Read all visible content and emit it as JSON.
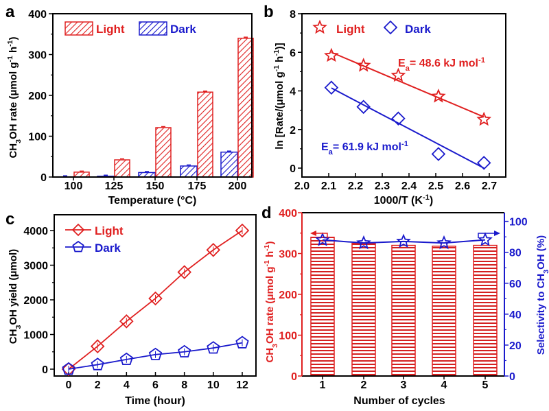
{
  "colors": {
    "light": "#e02020",
    "dark": "#1a1acc",
    "axis": "#000000",
    "light_fill": "#ffffff"
  },
  "chart_data": [
    {
      "panel_label": "a",
      "type": "bar",
      "categories": [
        "100",
        "125",
        "150",
        "175",
        "200"
      ],
      "xlabel": [
        "Temperature (°C)"
      ],
      "ylabel": [
        "CH",
        {
          "sub": "3"
        },
        "OH rate (μmol g",
        {
          "sup": "-1"
        },
        " h",
        {
          "sup": "-1"
        },
        ")"
      ],
      "ylim": [
        0,
        400
      ],
      "yticks": [
        0,
        100,
        200,
        300,
        400
      ],
      "legend_position": "top-left",
      "bar_pattern": "diagonal-hatch",
      "series": [
        {
          "name": "Dark",
          "color": "#1a1acc",
          "values": [
            0.5,
            2,
            11,
            27,
            61
          ]
        },
        {
          "name": "Light",
          "color": "#e02020",
          "values": [
            12,
            42,
            121,
            208,
            340
          ]
        }
      ]
    },
    {
      "panel_label": "b",
      "type": "scatter",
      "xlabel": [
        "1000/T (K",
        {
          "sup": "-1"
        },
        ")"
      ],
      "ylabel": [
        "ln [Rate/(μmol g",
        {
          "sup": "-1"
        },
        " h",
        {
          "sup": "-1"
        },
        ")]"
      ],
      "xlim": [
        2.0,
        2.76
      ],
      "ylim": [
        -0.45,
        8
      ],
      "xticks": [
        "2.0",
        "2.1",
        "2.2",
        "2.3",
        "2.4",
        "2.5",
        "2.6",
        "2.7"
      ],
      "yticks": [
        0,
        2,
        4,
        6,
        8
      ],
      "legend_position": "top-left",
      "series": [
        {
          "name": "Light",
          "marker": "star",
          "color": "#e02020",
          "x": [
            2.11,
            2.23,
            2.36,
            2.51,
            2.68
          ],
          "y": [
            5.83,
            5.32,
            4.8,
            3.72,
            2.52
          ],
          "fit": {
            "x": [
              2.11,
              2.68
            ],
            "y": [
              6.0,
              2.65
            ]
          }
        },
        {
          "name": "Dark",
          "marker": "diamond",
          "color": "#1a1acc",
          "x": [
            2.11,
            2.23,
            2.36,
            2.51,
            2.68
          ],
          "y": [
            4.17,
            3.17,
            2.57,
            0.73,
            0.27
          ],
          "fit": {
            "x": [
              2.11,
              2.68
            ],
            "y": [
              4.15,
              0.0
            ]
          }
        }
      ],
      "annotations": [
        {
          "color": "#e02020",
          "text": [
            "E",
            {
              "sub": "a"
            },
            "= 48.6 kJ mol",
            {
              "sup": "-1"
            }
          ]
        },
        {
          "color": "#1a1acc",
          "text": [
            "E",
            {
              "sub": "a"
            },
            "= 61.9 kJ mol",
            {
              "sup": "-1"
            }
          ]
        }
      ]
    },
    {
      "panel_label": "c",
      "type": "line",
      "xlabel": [
        "Time (hour)"
      ],
      "ylabel": [
        "CH",
        {
          "sub": "3"
        },
        "OH yield  (μmol)"
      ],
      "xlim": [
        -0.5,
        12.8
      ],
      "ylim": [
        -150,
        4500
      ],
      "xticks": [
        0,
        2,
        4,
        6,
        8,
        10,
        12
      ],
      "yticks": [
        0,
        1000,
        2000,
        3000,
        4000
      ],
      "legend_position": "top-left",
      "x": [
        0,
        2,
        4,
        6,
        8,
        10,
        12
      ],
      "series": [
        {
          "name": "Light",
          "marker": "diamond",
          "color": "#e02020",
          "values": [
            0,
            660,
            1380,
            2040,
            2800,
            3440,
            4000
          ]
        },
        {
          "name": "Dark",
          "marker": "pentagon",
          "color": "#1a1acc",
          "values": [
            0,
            130,
            280,
            420,
            500,
            610,
            760
          ]
        }
      ]
    },
    {
      "panel_label": "d",
      "type": "bar",
      "categories": [
        "1",
        "2",
        "3",
        "4",
        "5"
      ],
      "xlabel": [
        "Number of cycles"
      ],
      "ylabel": [
        "CH",
        {
          "sub": "3"
        },
        "OH rate (μmol g",
        {
          "sup": "-1"
        },
        " h",
        {
          "sup": "-1"
        },
        ")"
      ],
      "ylabel_right": [
        "Selectivity to CH",
        {
          "sub": "3"
        },
        "OH (%)"
      ],
      "ylim": [
        0,
        400
      ],
      "ylim_right": [
        0,
        105.6
      ],
      "yticks": [
        0,
        100,
        200,
        300,
        400
      ],
      "yticks_right": [
        0,
        20,
        40,
        60,
        80,
        100
      ],
      "bar_pattern": "horizontal-lines",
      "series": [
        {
          "axis": "left",
          "type": "bar",
          "color": "#e02020",
          "values": [
            340,
            325,
            320,
            318,
            320
          ]
        },
        {
          "axis": "right",
          "type": "line",
          "marker": "star",
          "color": "#1a1acc",
          "values": [
            88,
            86,
            87,
            86,
            88
          ]
        }
      ]
    }
  ]
}
